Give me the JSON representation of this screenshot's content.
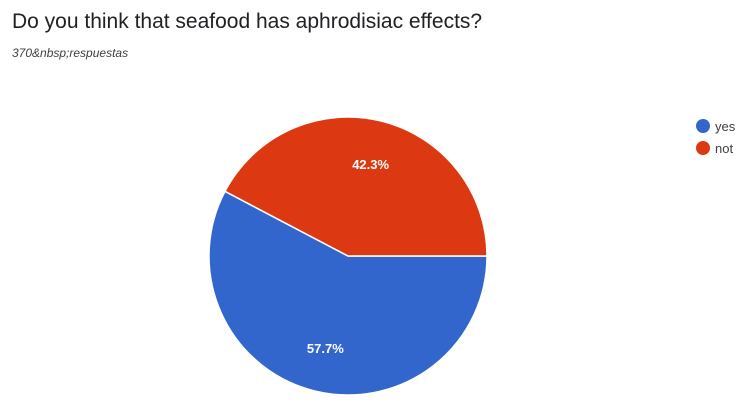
{
  "title": "Do you think that seafood has aphrodisiac effects?",
  "subtitle": "370&nbsp;respuestas",
  "chart_data": {
    "type": "pie",
    "title": "Do you think that seafood has aphrodisiac effects?",
    "subtitle": "370&nbsp;respuestas",
    "slices": [
      {
        "name": "yes",
        "value": 57.7,
        "label": "57.7%",
        "color": "#3366cc"
      },
      {
        "name": "not",
        "value": 42.3,
        "label": "42.3%",
        "color": "#dc3912"
      }
    ],
    "legend_position": "right"
  }
}
